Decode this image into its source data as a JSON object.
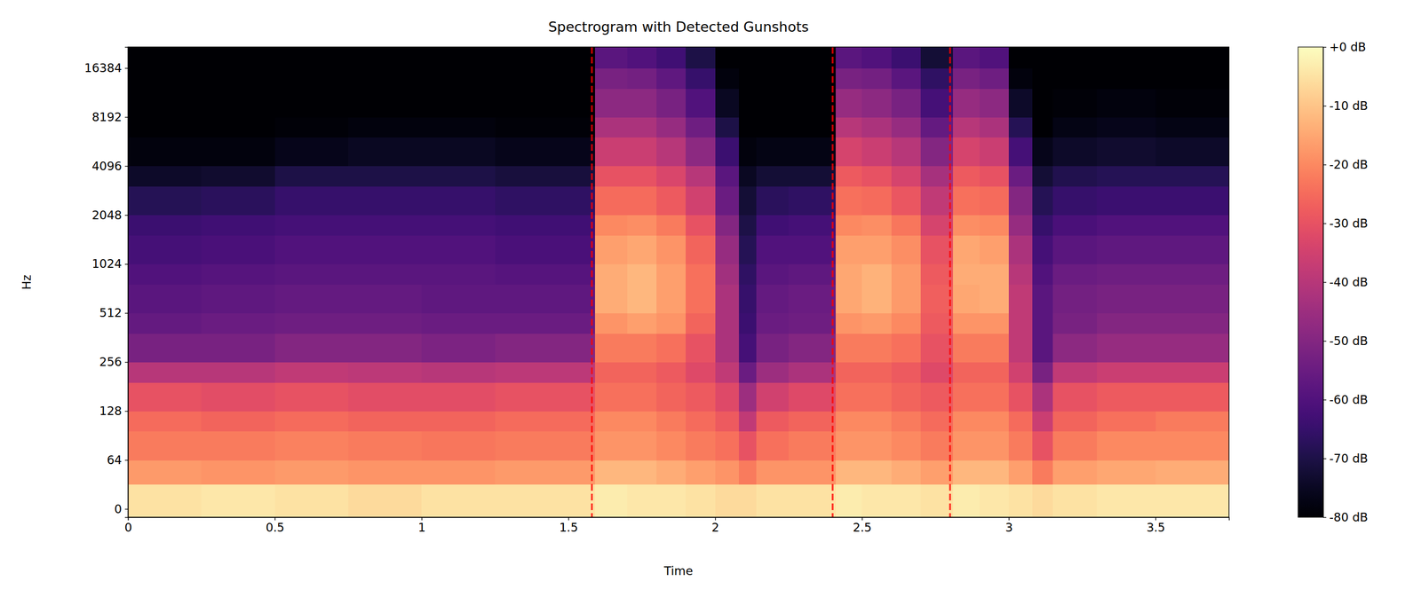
{
  "chart_data": {
    "type": "heatmap",
    "title": "Spectrogram with Detected Gunshots",
    "x_label": "Time",
    "y_label": "Hz",
    "log": "y",
    "color": "magma",
    "xlim": [
      0,
      3.75
    ],
    "xticks": [
      0,
      0.5,
      1,
      1.5,
      2,
      2.5,
      3,
      3.5
    ],
    "ylim": [
      -10.8,
      22060.8
    ],
    "yticks": [
      0,
      64,
      128,
      256,
      512,
      1024,
      2048,
      4096,
      8192,
      16384
    ],
    "times": [
      0,
      0.25,
      0.5,
      0.75,
      1,
      1.25,
      1.59,
      1.7,
      1.8,
      1.9,
      2,
      2.08,
      2.14,
      2.25,
      2.41,
      2.5,
      2.6,
      2.7,
      2.81,
      2.9,
      3,
      3.08,
      3.15,
      3.3,
      3.5,
      3.75
    ],
    "freqs": [
      -10.8,
      32,
      64,
      96,
      128,
      192,
      256,
      384,
      512,
      768,
      1024,
      1536,
      2048,
      3072,
      4096,
      6144,
      8192,
      12288,
      16384,
      22060.8
    ],
    "values": [
      [
        -5,
        -17,
        -22,
        -25,
        -30,
        -40,
        -52,
        -56,
        -58,
        -60,
        -62,
        -64,
        -68,
        -74,
        -78,
        -80,
        -80,
        -80,
        -80
      ],
      [
        -4,
        -18,
        -22,
        -26,
        -31,
        -40,
        -52,
        -55,
        -57,
        -59,
        -61,
        -63,
        -67,
        -73,
        -78,
        -80,
        -80,
        -80,
        -80
      ],
      [
        -5,
        -17,
        -21,
        -25,
        -30,
        -38,
        -50,
        -54,
        -56,
        -58,
        -60,
        -62,
        -65,
        -70,
        -76,
        -79,
        -80,
        -80,
        -80
      ],
      [
        -6,
        -18,
        -22,
        -26,
        -31,
        -39,
        -50,
        -54,
        -56,
        -58,
        -60,
        -62,
        -65,
        -70,
        -75,
        -78,
        -80,
        -80,
        -80
      ],
      [
        -5,
        -18,
        -23,
        -26,
        -31,
        -40,
        -51,
        -55,
        -57,
        -58,
        -60,
        -62,
        -65,
        -70,
        -75,
        -78,
        -80,
        -80,
        -80
      ],
      [
        -5,
        -17,
        -22,
        -25,
        -30,
        -39,
        -50,
        -55,
        -57,
        -59,
        -61,
        -63,
        -66,
        -71,
        -76,
        -79,
        -80,
        -80,
        -80
      ],
      [
        -3,
        -12,
        -18,
        -20,
        -24,
        -26,
        -22,
        -18,
        -14,
        -14,
        -16,
        -20,
        -25,
        -30,
        -36,
        -42,
        -48,
        -52,
        -58
      ],
      [
        -4,
        -12,
        -18,
        -20,
        -24,
        -26,
        -22,
        -16,
        -12,
        -12,
        -15,
        -19,
        -25,
        -30,
        -36,
        -42,
        -48,
        -53,
        -60
      ],
      [
        -4,
        -14,
        -20,
        -22,
        -26,
        -28,
        -24,
        -18,
        -16,
        -16,
        -18,
        -22,
        -28,
        -33,
        -40,
        -46,
        -52,
        -57,
        -63
      ],
      [
        -5,
        -16,
        -22,
        -25,
        -28,
        -32,
        -30,
        -26,
        -24,
        -24,
        -26,
        -30,
        -35,
        -40,
        -48,
        -54,
        -60,
        -65,
        -70
      ],
      [
        -6,
        -18,
        -24,
        -28,
        -32,
        -38,
        -42,
        -42,
        -42,
        -44,
        -46,
        -50,
        -55,
        -58,
        -64,
        -70,
        -75,
        -78,
        -80
      ],
      [
        -6,
        -22,
        -30,
        -38,
        -45,
        -55,
        -62,
        -64,
        -65,
        -66,
        -68,
        -70,
        -72,
        -75,
        -78,
        -80,
        -80,
        -80,
        -80
      ],
      [
        -5,
        -18,
        -24,
        -28,
        -35,
        -45,
        -52,
        -55,
        -56,
        -58,
        -60,
        -63,
        -67,
        -72,
        -77,
        -80,
        -80,
        -80,
        -80
      ],
      [
        -5,
        -18,
        -22,
        -26,
        -32,
        -42,
        -50,
        -54,
        -55,
        -57,
        -60,
        -62,
        -66,
        -72,
        -77,
        -80,
        -80,
        -80,
        -80
      ],
      [
        -3,
        -12,
        -18,
        -20,
        -24,
        -26,
        -22,
        -18,
        -15,
        -15,
        -16,
        -20,
        -24,
        -28,
        -34,
        -40,
        -46,
        -52,
        -58
      ],
      [
        -4,
        -12,
        -18,
        -20,
        -24,
        -26,
        -22,
        -17,
        -13,
        -13,
        -16,
        -19,
        -25,
        -30,
        -36,
        -42,
        -48,
        -53,
        -60
      ],
      [
        -4,
        -14,
        -20,
        -22,
        -26,
        -28,
        -24,
        -20,
        -17,
        -17,
        -19,
        -23,
        -29,
        -34,
        -40,
        -46,
        -52,
        -58,
        -64
      ],
      [
        -5,
        -16,
        -22,
        -25,
        -28,
        -32,
        -30,
        -28,
        -27,
        -28,
        -30,
        -34,
        -38,
        -43,
        -50,
        -56,
        -62,
        -66,
        -72
      ],
      [
        -3,
        -12,
        -18,
        -20,
        -24,
        -26,
        -22,
        -18,
        -15,
        -14,
        -15,
        -19,
        -24,
        -28,
        -34,
        -40,
        -46,
        -52,
        -58
      ],
      [
        -4,
        -12,
        -18,
        -20,
        -24,
        -26,
        -22,
        -18,
        -14,
        -14,
        -16,
        -20,
        -25,
        -30,
        -36,
        -42,
        -48,
        -54,
        -60
      ],
      [
        -5,
        -16,
        -22,
        -25,
        -30,
        -35,
        -38,
        -38,
        -38,
        -40,
        -42,
        -46,
        -50,
        -55,
        -62,
        -68,
        -74,
        -78,
        -80
      ],
      [
        -6,
        -22,
        -30,
        -36,
        -42,
        -52,
        -58,
        -58,
        -58,
        -60,
        -62,
        -65,
        -68,
        -72,
        -76,
        -80,
        -80,
        -80,
        -80
      ],
      [
        -5,
        -16,
        -22,
        -26,
        -30,
        -38,
        -48,
        -52,
        -53,
        -55,
        -58,
        -61,
        -65,
        -69,
        -74,
        -77,
        -79,
        -80,
        -80
      ],
      [
        -4,
        -15,
        -20,
        -24,
        -28,
        -36,
        -46,
        -50,
        -52,
        -54,
        -57,
        -60,
        -64,
        -68,
        -73,
        -76,
        -78,
        -80,
        -80
      ],
      [
        -4,
        -14,
        -20,
        -22,
        -28,
        -36,
        -46,
        -50,
        -52,
        -54,
        -57,
        -60,
        -64,
        -68,
        -74,
        -77,
        -79,
        -80,
        -80
      ]
    ],
    "gunshots": [
      1.58,
      2.4,
      2.8
    ],
    "colorbar": {
      "range": [
        -80,
        0
      ],
      "ticks": [
        {
          "value": 0,
          "label": "+0 dB"
        },
        {
          "value": -10,
          "label": "-10 dB"
        },
        {
          "value": -20,
          "label": "-20 dB"
        },
        {
          "value": -30,
          "label": "-30 dB"
        },
        {
          "value": -40,
          "label": "-40 dB"
        },
        {
          "value": -50,
          "label": "-50 dB"
        },
        {
          "value": -60,
          "label": "-60 dB"
        },
        {
          "value": -70,
          "label": "-70 dB"
        },
        {
          "value": -80,
          "label": "-80 dB"
        }
      ]
    }
  }
}
